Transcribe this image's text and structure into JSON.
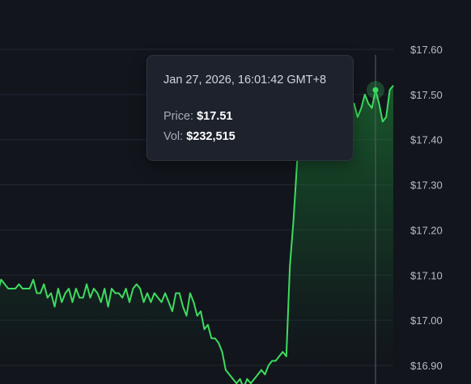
{
  "chart_data": {
    "type": "area",
    "y_axis_ticks": [
      "$17.60",
      "$17.50",
      "$17.40",
      "$17.30",
      "$17.20",
      "$17.10",
      "$17.00",
      "$16.90"
    ],
    "ylim": [
      16.86,
      17.64
    ],
    "grid": true,
    "line_color": "#3ddc5f",
    "values": [
      17.06,
      17.09,
      17.08,
      17.07,
      17.07,
      17.07,
      17.08,
      17.07,
      17.07,
      17.07,
      17.09,
      17.06,
      17.06,
      17.08,
      17.05,
      17.06,
      17.03,
      17.07,
      17.04,
      17.06,
      17.07,
      17.04,
      17.07,
      17.05,
      17.05,
      17.08,
      17.05,
      17.07,
      17.06,
      17.04,
      17.07,
      17.03,
      17.07,
      17.06,
      17.06,
      17.05,
      17.07,
      17.04,
      17.07,
      17.08,
      17.07,
      17.04,
      17.06,
      17.04,
      17.06,
      17.05,
      17.04,
      17.06,
      17.04,
      17.02,
      17.06,
      17.06,
      17.03,
      17.01,
      17.06,
      17.04,
      17.01,
      17.02,
      16.98,
      16.99,
      16.96,
      16.96,
      16.95,
      16.93,
      16.89,
      16.88,
      16.87,
      16.86,
      16.87,
      16.85,
      16.87,
      16.86,
      16.87,
      16.88,
      16.89,
      16.88,
      16.9,
      16.91,
      16.91,
      16.92,
      16.93,
      16.92,
      17.12,
      17.22,
      17.35,
      17.46,
      17.43,
      17.41,
      17.45,
      17.48,
      17.5,
      17.44,
      17.45,
      17.47,
      17.49,
      17.46,
      17.47,
      17.45,
      17.44,
      17.47,
      17.48,
      17.45,
      17.47,
      17.5,
      17.48,
      17.47,
      17.51,
      17.48,
      17.44,
      17.45,
      17.51,
      17.52
    ],
    "highlight_index": 106,
    "tooltip": {
      "date": "Jan 27, 2026, 16:01:42 GMT+8",
      "price_label": "Price:",
      "price_value": "$17.51",
      "vol_label": "Vol:",
      "vol_value": "$232,515"
    }
  }
}
